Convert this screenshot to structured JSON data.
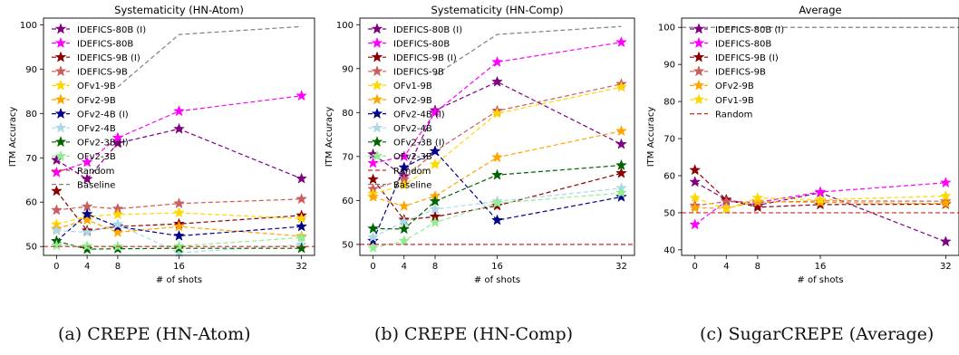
{
  "x_axis_label": "# of shots",
  "y_axis_label": "ITM Accuracy",
  "captions": [
    "(a) CREPE (HN-Atom)",
    "(b) CREPE (HN-Comp)",
    "(c) SugarCREPE (Average)"
  ],
  "colors": {
    "IDEFICS-80B (I)": "#800080",
    "IDEFICS-80B": "#ff00ff",
    "IDEFICS-9B (I)": "#8b0000",
    "IDEFICS-9B": "#cd5c5c",
    "OFv1-9B": "#ffd700",
    "OFv2-9B": "#ffa500",
    "OFv2-4B (I)": "#00008b",
    "OFv2-4B": "#add8e6",
    "OFv2-3B (I)": "#006400",
    "OFv2-3B": "#90ee90",
    "Random": "#d62728",
    "Baseline": "#808080"
  },
  "chart_data": [
    {
      "type": "line",
      "title": "Systematicity (HN-Atom)",
      "xlabel": "# of shots",
      "ylabel": "ITM Accuracy",
      "x": [
        0,
        4,
        8,
        16,
        32
      ],
      "xticks": [
        0,
        4,
        8,
        16,
        32
      ],
      "yticks": [
        50,
        60,
        70,
        80,
        90,
        100
      ],
      "ylim": [
        48,
        101.5
      ],
      "legend": "upper-left",
      "series": [
        {
          "name": "IDEFICS-80B (I)",
          "values": [
            69.5,
            65.2,
            73.3,
            76.5,
            65.3
          ]
        },
        {
          "name": "IDEFICS-80B",
          "values": [
            66.7,
            69.0,
            74.5,
            80.5,
            84.0
          ]
        },
        {
          "name": "IDEFICS-9B (I)",
          "values": [
            62.5,
            53.6,
            54.5,
            55.1,
            57.0
          ]
        },
        {
          "name": "IDEFICS-9B",
          "values": [
            58.2,
            59.0,
            58.5,
            59.7,
            60.7
          ]
        },
        {
          "name": "OFv1-9B",
          "values": [
            55.0,
            56.8,
            57.2,
            57.6,
            56.3
          ]
        },
        {
          "name": "OFv2-9B",
          "values": [
            54.0,
            56.0,
            53.2,
            54.5,
            52.3
          ]
        },
        {
          "name": "OFv2-4B (I)",
          "values": [
            51.2,
            57.3,
            54.5,
            52.4,
            54.5
          ]
        },
        {
          "name": "OFv2-4B",
          "values": [
            53.6,
            53.2,
            55.0,
            48.6,
            50.4
          ]
        },
        {
          "name": "OFv2-3B (I)",
          "values": [
            51.2,
            49.4,
            49.5,
            49.6,
            49.6
          ]
        },
        {
          "name": "OFv2-3B",
          "values": [
            50.2,
            50.1,
            50.0,
            50.1,
            52.0
          ]
        },
        {
          "name": "Random",
          "kind": "hline",
          "y": 50
        },
        {
          "name": "Baseline",
          "kind": "dashed",
          "x": [
            8,
            16,
            32
          ],
          "values": [
            86.0,
            97.8,
            99.6
          ]
        }
      ]
    },
    {
      "type": "line",
      "title": "Systematicity (HN-Comp)",
      "xlabel": "# of shots",
      "ylabel": "ITM Accuracy",
      "x": [
        0,
        4,
        8,
        16,
        32
      ],
      "xticks": [
        0,
        4,
        8,
        16,
        32
      ],
      "yticks": [
        50,
        60,
        70,
        80,
        90,
        100
      ],
      "ylim": [
        47.5,
        101.5
      ],
      "legend": "upper-left",
      "series": [
        {
          "name": "IDEFICS-80B (I)",
          "values": [
            70.5,
            65.5,
            80.5,
            87.0,
            72.8
          ]
        },
        {
          "name": "IDEFICS-80B",
          "values": [
            68.5,
            70.0,
            80.0,
            91.5,
            96.0
          ]
        },
        {
          "name": "IDEFICS-9B (I)",
          "values": [
            64.8,
            55.6,
            56.3,
            58.8,
            66.2
          ]
        },
        {
          "name": "IDEFICS-9B",
          "values": [
            62.6,
            64.8,
            71.2,
            80.4,
            86.5
          ]
        },
        {
          "name": "OFv1-9B",
          "values": [
            61.5,
            63.5,
            68.2,
            79.8,
            85.8
          ]
        },
        {
          "name": "OFv2-9B",
          "values": [
            60.8,
            58.7,
            61.0,
            69.8,
            75.8
          ]
        },
        {
          "name": "OFv2-4B (I)",
          "values": [
            50.8,
            67.5,
            71.2,
            55.5,
            60.8
          ]
        },
        {
          "name": "OFv2-4B",
          "values": [
            51.6,
            55.2,
            58.0,
            59.8,
            62.8
          ]
        },
        {
          "name": "OFv2-3B (I)",
          "values": [
            53.6,
            53.5,
            59.8,
            65.8,
            68.0
          ]
        },
        {
          "name": "OFv2-3B",
          "values": [
            49.2,
            50.8,
            55.0,
            59.4,
            61.7
          ]
        },
        {
          "name": "Random",
          "kind": "hline",
          "y": 50
        },
        {
          "name": "Baseline",
          "kind": "dashed",
          "x": [
            8,
            16,
            32
          ],
          "values": [
            88.5,
            97.8,
            99.6
          ]
        }
      ]
    },
    {
      "type": "line",
      "title": "Average",
      "xlabel": "# of shots",
      "ylabel": "ITM Accuracy",
      "x": [
        0,
        4,
        8,
        16,
        32
      ],
      "xticks": [
        0,
        4,
        8,
        16,
        32
      ],
      "yticks": [
        40,
        50,
        60,
        70,
        80,
        90,
        100
      ],
      "ylim": [
        38.5,
        102.5
      ],
      "legend": "upper-left",
      "series": [
        {
          "name": "IDEFICS-80B (I)",
          "values": [
            58.3,
            53.5,
            52.0,
            55.4,
            42.2
          ]
        },
        {
          "name": "IDEFICS-80B",
          "values": [
            46.8,
            53.1,
            52.8,
            55.6,
            58.1
          ]
        },
        {
          "name": "IDEFICS-9B (I)",
          "values": [
            61.5,
            53.5,
            51.5,
            52.2,
            52.3
          ]
        },
        {
          "name": "IDEFICS-9B",
          "values": [
            51.9,
            53.0,
            52.8,
            53.2,
            53.1
          ]
        },
        {
          "name": "OFv2-9B",
          "values": [
            51.3,
            51.2,
            53.0,
            52.8,
            52.5
          ]
        },
        {
          "name": "OFv1-9B",
          "values": [
            54.0,
            51.0,
            54.0,
            53.5,
            54.5
          ]
        },
        {
          "name": "Random",
          "kind": "hline",
          "y": 50
        },
        {
          "name": "Baseline",
          "kind": "hline-dashed",
          "y": 100,
          "legend": false
        }
      ]
    }
  ]
}
